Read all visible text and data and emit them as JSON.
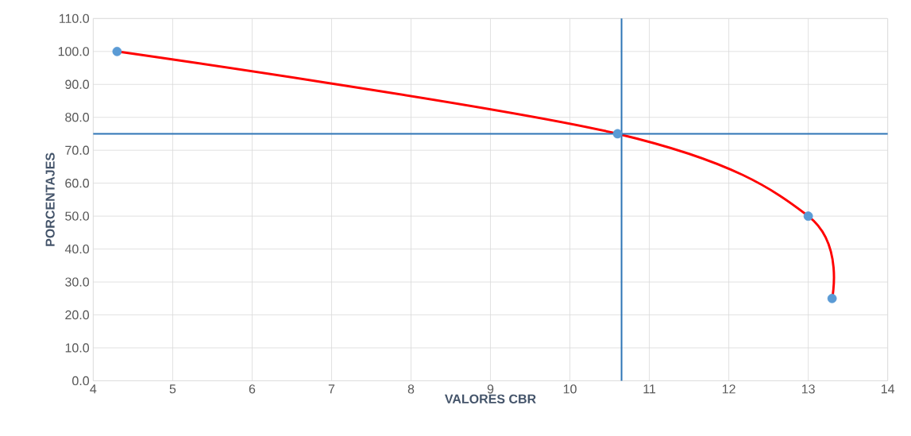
{
  "chart_data": {
    "type": "line",
    "xlabel": "VALORES CBR",
    "ylabel": "PORCENTAJES",
    "series": [
      {
        "color": "#ff0000",
        "x": [
          4.3,
          10.6,
          13.0,
          13.3
        ],
        "values": [
          100,
          75,
          50,
          25
        ]
      },
      {
        "type": "scatter",
        "color": "#5b9bd5",
        "x": [
          4.3,
          10.6,
          13.0,
          13.3
        ],
        "values": [
          100,
          75,
          50,
          25
        ]
      }
    ],
    "xlim": [
      4,
      14
    ],
    "xticks": [
      4,
      5,
      6,
      7,
      8,
      9,
      10,
      11,
      12,
      13,
      14
    ],
    "ylim": [
      0,
      110
    ],
    "yticks": [
      {
        "value": 0,
        "label": "0.0"
      },
      {
        "value": 10,
        "label": "10.0"
      },
      {
        "value": 20,
        "label": "20.0"
      },
      {
        "value": 30,
        "label": "30.0"
      },
      {
        "value": 40,
        "label": "40.0"
      },
      {
        "value": 50,
        "label": "50.0"
      },
      {
        "value": 60,
        "label": "60.0"
      },
      {
        "value": 70,
        "label": "70.0"
      },
      {
        "value": 80,
        "label": "80.0"
      },
      {
        "value": 90,
        "label": "90.0"
      },
      {
        "value": 100,
        "label": "100.0"
      },
      {
        "value": 110,
        "label": "110.0"
      }
    ],
    "ref_lines": [
      {
        "axis": "y",
        "value": 75,
        "color": "#2e75b6"
      },
      {
        "axis": "x",
        "value": 10.65,
        "color": "#2e75b6"
      }
    ],
    "grid": true
  }
}
